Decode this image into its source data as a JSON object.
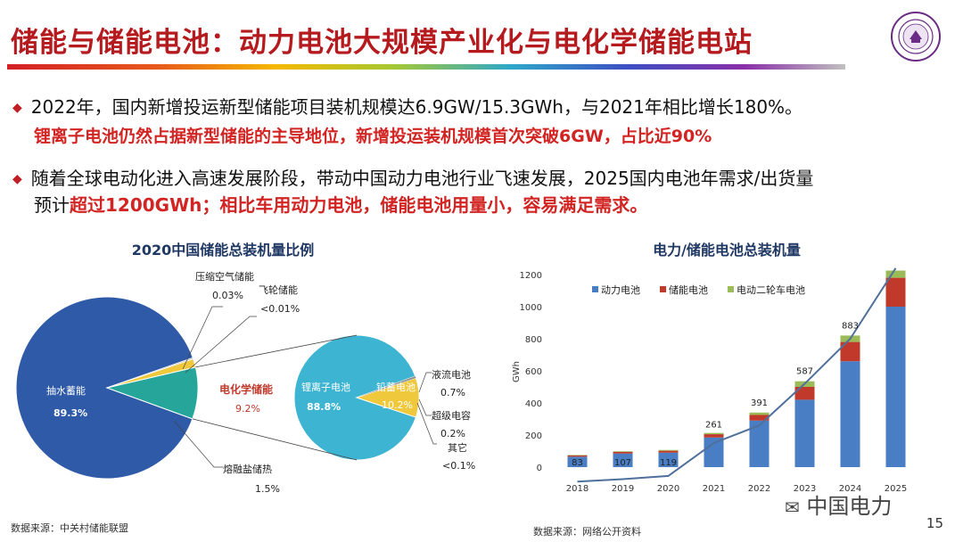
{
  "slide": {
    "title": "储能与储能电池：动力电池大规模产业化与电化学储能电站",
    "bullet1_line1": "2022年，国内新增投运新型储能项目装机规模达6.9GW/15.3GWh，与2021年相比增长180%。",
    "bullet1_line2": "锂离子电池仍然占据新型储能的主导地位，新增投运装机规模首次突破6GW，占比近90%",
    "bullet2_line1": "随着全球电动化进入高速发展阶段，带动中国动力电池行业飞速发展，2025国内电池年需求/出货量",
    "bullet2_line2_a": "预计",
    "bullet2_line2_b": "超过1200GWh；相比车用动力电池，储能电池用量小，容易满足需求。",
    "source_left": "数据来源：中关村储能联盟",
    "source_right": "数据来源：网络公开资料",
    "page_number": "15",
    "watermark": "中国电力"
  },
  "chart_data": [
    {
      "type": "pie",
      "title": "2020中国储能总装机量比例",
      "slices": [
        {
          "label": "抽水蓄能",
          "value_label": "89.3%",
          "value": 89.3,
          "color": "#2e5aa8"
        },
        {
          "label": "电化学储能",
          "value_label": "9.2%",
          "value": 9.2,
          "color": "#26a69a"
        },
        {
          "label": "熔融盐储热",
          "value_label": "1.5%",
          "value": 1.5,
          "color": "#f0c83c"
        },
        {
          "label": "压缩空气储能",
          "value_label": "0.03%",
          "value": 0.03
        },
        {
          "label": "飞轮储能",
          "value_label": "<0.01%",
          "value": 0.01
        }
      ],
      "sub_pie": {
        "slices": [
          {
            "label": "锂离子电池",
            "value_label": "88.8%",
            "value": 88.8,
            "color": "#3cb4d2"
          },
          {
            "label": "铅蓄电池",
            "value_label": "10.2%",
            "value": 10.2,
            "color": "#f0c83c"
          },
          {
            "label": "液流电池",
            "value_label": "0.7%",
            "value": 0.7
          },
          {
            "label": "超级电容",
            "value_label": "0.2%",
            "value": 0.2
          },
          {
            "label": "其它",
            "value_label": "<0.1%",
            "value": 0.1
          }
        ]
      }
    },
    {
      "type": "bar",
      "title": "电力/储能电池总装机量",
      "ylabel": "GWh",
      "ylim": [
        0,
        1200
      ],
      "yticks": [
        0,
        200,
        400,
        600,
        800,
        1000,
        1200
      ],
      "categories": [
        "2018",
        "2019",
        "2020",
        "2021",
        "2022",
        "2023",
        "2024",
        "2025"
      ],
      "stacked": true,
      "series": [
        {
          "name": "动力电池",
          "color": "#4a7ec4",
          "values": [
            65,
            85,
            90,
            185,
            290,
            420,
            660,
            1000
          ]
        },
        {
          "name": "储能电池",
          "color": "#c0392b",
          "values": [
            8,
            10,
            12,
            20,
            35,
            80,
            120,
            180
          ]
        },
        {
          "name": "电动二轮车电池",
          "color": "#9bbb59",
          "values": [
            3,
            4,
            5,
            8,
            15,
            35,
            40,
            45
          ]
        }
      ],
      "line": {
        "color": "#4f6f9c",
        "values": [
          -90,
          -75,
          -55,
          150,
          260,
          520,
          800,
          1240
        ]
      },
      "data_labels": [
        "83",
        "107",
        "119",
        "261",
        "391",
        "587",
        "883"
      ]
    }
  ]
}
